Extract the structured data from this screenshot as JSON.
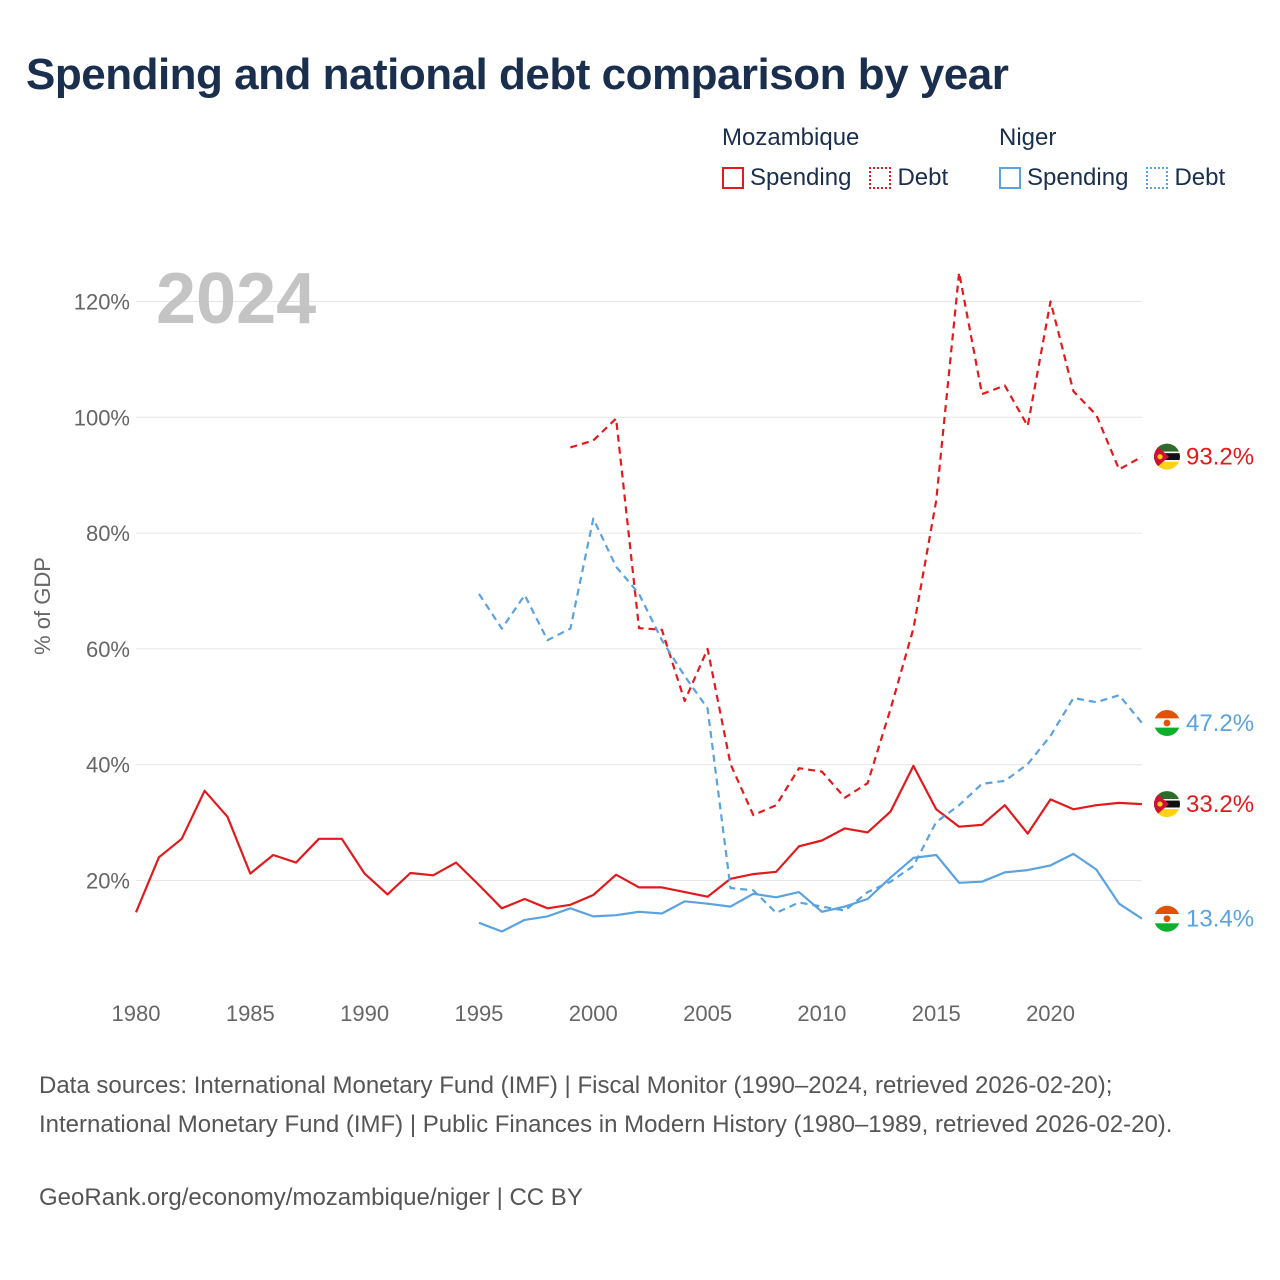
{
  "title": "Spending and national debt comparison by year",
  "legend": {
    "groups": [
      {
        "country": "Mozambique",
        "color": "#e31a1c",
        "items": [
          {
            "label": "Spending",
            "style": "solid"
          },
          {
            "label": "Debt",
            "style": "dotted"
          }
        ]
      },
      {
        "country": "Niger",
        "color": "#5aa2e0",
        "items": [
          {
            "label": "Spending",
            "style": "solid"
          },
          {
            "label": "Debt",
            "style": "dotted"
          }
        ]
      }
    ]
  },
  "year_label": "2024",
  "sources": "Data sources: International Monetary Fund (IMF) | Fiscal Monitor (1990–2024, retrieved 2026-02-20); International Monetary Fund (IMF) | Public Finances in Modern History (1980–1989, retrieved 2026-02-20).",
  "credit": "GeoRank.org/economy/mozambique/niger | CC BY",
  "chart_data": {
    "type": "line",
    "title": "Spending and national debt comparison by year",
    "xlabel": "",
    "ylabel": "% of GDP",
    "xlim": [
      1980,
      2024
    ],
    "ylim": [
      5,
      127
    ],
    "xticks": [
      1980,
      1985,
      1990,
      1995,
      2000,
      2005,
      2010,
      2015,
      2020
    ],
    "xtick_labels": [
      "1980",
      "1985",
      "1990",
      "1995",
      "2000",
      "2005",
      "2010",
      "2015",
      "2020"
    ],
    "yticks": [
      20,
      40,
      60,
      80,
      100,
      120
    ],
    "ytick_labels": [
      "20%",
      "40%",
      "60%",
      "80%",
      "100%",
      "120%"
    ],
    "grid": true,
    "series": [
      {
        "name": "Mozambique Spending",
        "country": "Mozambique",
        "metric": "Spending",
        "color": "#e31a1c",
        "dash": "solid",
        "end_label": "33.2%",
        "flag": "mozambique",
        "points": [
          [
            1980,
            14.5
          ],
          [
            1981,
            24.0
          ],
          [
            1982,
            27.2
          ],
          [
            1983,
            35.5
          ],
          [
            1984,
            31.0
          ],
          [
            1985,
            21.2
          ],
          [
            1986,
            24.4
          ],
          [
            1987,
            23.1
          ],
          [
            1988,
            27.2
          ],
          [
            1989,
            27.2
          ],
          [
            1990,
            21.2
          ],
          [
            1991,
            17.6
          ],
          [
            1992,
            21.3
          ],
          [
            1993,
            20.9
          ],
          [
            1994,
            23.1
          ],
          [
            1995,
            19.2
          ],
          [
            1996,
            15.2
          ],
          [
            1997,
            16.8
          ],
          [
            1998,
            15.2
          ],
          [
            1999,
            15.8
          ],
          [
            2000,
            17.5
          ],
          [
            2001,
            21.0
          ],
          [
            2002,
            18.8
          ],
          [
            2003,
            18.8
          ],
          [
            2004,
            18.0
          ],
          [
            2005,
            17.2
          ],
          [
            2006,
            20.3
          ],
          [
            2007,
            21.1
          ],
          [
            2008,
            21.5
          ],
          [
            2009,
            25.9
          ],
          [
            2010,
            26.9
          ],
          [
            2011,
            29.0
          ],
          [
            2012,
            28.3
          ],
          [
            2013,
            31.9
          ],
          [
            2014,
            39.8
          ],
          [
            2015,
            32.3
          ],
          [
            2016,
            29.3
          ],
          [
            2017,
            29.6
          ],
          [
            2018,
            33.0
          ],
          [
            2019,
            28.1
          ],
          [
            2020,
            34.0
          ],
          [
            2021,
            32.3
          ],
          [
            2022,
            33.0
          ],
          [
            2023,
            33.4
          ],
          [
            2024,
            33.2
          ]
        ]
      },
      {
        "name": "Mozambique Debt",
        "country": "Mozambique",
        "metric": "Debt",
        "color": "#e31a1c",
        "dash": "dashed",
        "end_label": "93.2%",
        "flag": "mozambique",
        "points": [
          [
            1999,
            94.8
          ],
          [
            2000,
            96.0
          ],
          [
            2001,
            99.8
          ],
          [
            2002,
            63.6
          ],
          [
            2003,
            63.3
          ],
          [
            2004,
            51.0
          ],
          [
            2005,
            60.0
          ],
          [
            2006,
            40.1
          ],
          [
            2007,
            31.3
          ],
          [
            2008,
            33.0
          ],
          [
            2009,
            39.4
          ],
          [
            2010,
            38.8
          ],
          [
            2011,
            34.3
          ],
          [
            2012,
            36.8
          ],
          [
            2013,
            49.6
          ],
          [
            2014,
            63.5
          ],
          [
            2015,
            85.6
          ],
          [
            2016,
            125.0
          ],
          [
            2017,
            104.0
          ],
          [
            2018,
            105.5
          ],
          [
            2019,
            98.5
          ],
          [
            2020,
            120.0
          ],
          [
            2021,
            104.5
          ],
          [
            2022,
            100.4
          ],
          [
            2023,
            91.0
          ],
          [
            2024,
            93.2
          ]
        ]
      },
      {
        "name": "Niger Spending",
        "country": "Niger",
        "metric": "Spending",
        "color": "#5aa2e0",
        "dash": "solid",
        "end_label": "13.4%",
        "flag": "niger",
        "points": [
          [
            1995,
            12.7
          ],
          [
            1996,
            11.2
          ],
          [
            1997,
            13.2
          ],
          [
            1998,
            13.8
          ],
          [
            1999,
            15.2
          ],
          [
            2000,
            13.8
          ],
          [
            2001,
            14.0
          ],
          [
            2002,
            14.6
          ],
          [
            2003,
            14.3
          ],
          [
            2004,
            16.4
          ],
          [
            2005,
            16.0
          ],
          [
            2006,
            15.5
          ],
          [
            2007,
            17.7
          ],
          [
            2008,
            17.1
          ],
          [
            2009,
            18.0
          ],
          [
            2010,
            14.6
          ],
          [
            2011,
            15.5
          ],
          [
            2012,
            16.8
          ],
          [
            2013,
            20.5
          ],
          [
            2014,
            23.9
          ],
          [
            2015,
            24.4
          ],
          [
            2016,
            19.6
          ],
          [
            2017,
            19.8
          ],
          [
            2018,
            21.4
          ],
          [
            2019,
            21.8
          ],
          [
            2020,
            22.6
          ],
          [
            2021,
            24.6
          ],
          [
            2022,
            21.9
          ],
          [
            2023,
            16.0
          ],
          [
            2024,
            13.4
          ]
        ]
      },
      {
        "name": "Niger Debt",
        "country": "Niger",
        "metric": "Debt",
        "color": "#5aa2e0",
        "dash": "dashed",
        "end_label": "47.2%",
        "flag": "niger",
        "points": [
          [
            1995,
            69.5
          ],
          [
            1996,
            63.5
          ],
          [
            1997,
            69.3
          ],
          [
            1998,
            61.5
          ],
          [
            1999,
            63.5
          ],
          [
            2000,
            82.5
          ],
          [
            2001,
            74.2
          ],
          [
            2002,
            69.5
          ],
          [
            2003,
            61.5
          ],
          [
            2004,
            55.3
          ],
          [
            2005,
            49.7
          ],
          [
            2006,
            18.7
          ],
          [
            2007,
            18.3
          ],
          [
            2008,
            14.4
          ],
          [
            2009,
            16.2
          ],
          [
            2010,
            15.5
          ],
          [
            2011,
            14.8
          ],
          [
            2012,
            18.0
          ],
          [
            2013,
            19.8
          ],
          [
            2014,
            22.5
          ],
          [
            2015,
            30.1
          ],
          [
            2016,
            33.0
          ],
          [
            2017,
            36.7
          ],
          [
            2018,
            37.2
          ],
          [
            2019,
            40.1
          ],
          [
            2020,
            45.0
          ],
          [
            2021,
            51.5
          ],
          [
            2022,
            50.8
          ],
          [
            2023,
            52.0
          ],
          [
            2024,
            47.2
          ]
        ]
      }
    ]
  }
}
